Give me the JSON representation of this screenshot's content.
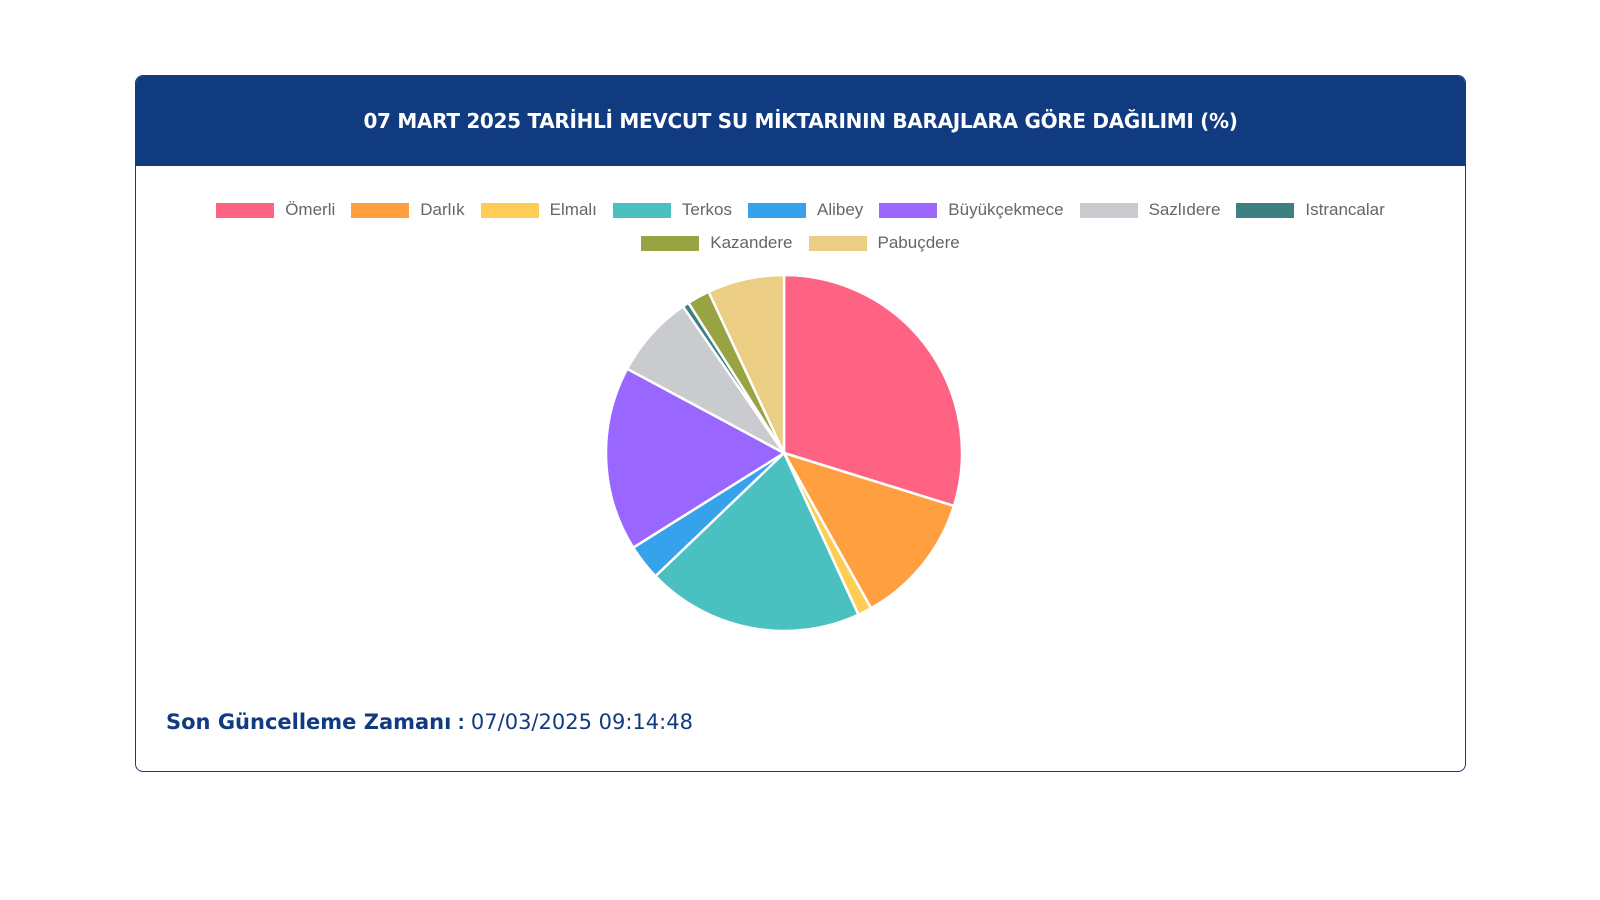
{
  "header": {
    "title": "07 MART 2025 TARİHLİ MEVCUT SU MİKTARININ BARAJLARA GÖRE DAĞILIMI (%)"
  },
  "legend": [
    {
      "label": "Ömerli",
      "color": "#ff6384"
    },
    {
      "label": "Darlık",
      "color": "#ff9f40"
    },
    {
      "label": "Elmalı",
      "color": "#ffcd56"
    },
    {
      "label": "Terkos",
      "color": "#4bc0c0"
    },
    {
      "label": "Alibey",
      "color": "#36a2eb"
    },
    {
      "label": "Büyükçekmece",
      "color": "#9966ff"
    },
    {
      "label": "Sazlıdere",
      "color": "#c9cbcf"
    },
    {
      "label": "Istrancalar",
      "color": "#3e7f82"
    },
    {
      "label": "Kazandere",
      "color": "#9aa341"
    },
    {
      "label": "Pabuçdere",
      "color": "#ebcd84"
    }
  ],
  "chart_data": {
    "type": "pie",
    "title": "07 MART 2025 TARİHLİ MEVCUT SU MİKTARININ BARAJLARA GÖRE DAĞILIMI (%)",
    "categories": [
      "Ömerli",
      "Darlık",
      "Elmalı",
      "Terkos",
      "Alibey",
      "Büyükçekmece",
      "Sazlıdere",
      "Istrancalar",
      "Kazandere",
      "Pabuçdere"
    ],
    "values": [
      30.4,
      12.3,
      1.3,
      20.1,
      3.3,
      17.1,
      7.7,
      0.6,
      2.1,
      7.1
    ],
    "colors": [
      "#ff6384",
      "#ff9f40",
      "#ffcd56",
      "#4bc0c0",
      "#36a2eb",
      "#9966ff",
      "#c9cbcf",
      "#3e7f82",
      "#9aa341",
      "#ebcd84"
    ],
    "legend_position": "top"
  },
  "footer": {
    "label": "Son Güncelleme Zamanı",
    "separator": ":",
    "value": "07/03/2025 09:14:48"
  }
}
